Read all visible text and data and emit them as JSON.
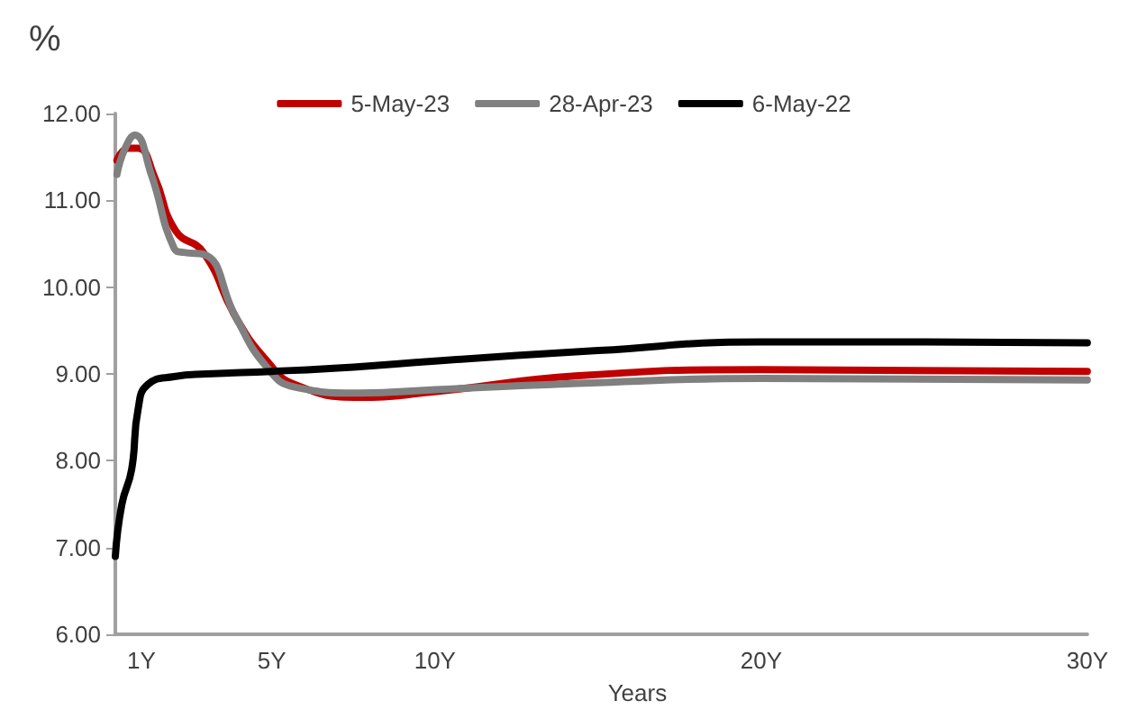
{
  "chart_data": {
    "type": "line",
    "ylabel": "%",
    "xlabel": "Years",
    "legend": "top",
    "grid": false,
    "marker": "none",
    "line_style": "solid",
    "xlim": [
      0.2,
      30
    ],
    "xticks": [
      {
        "value": 1,
        "label": "1Y"
      },
      {
        "value": 5,
        "label": "5Y"
      },
      {
        "value": 10,
        "label": "10Y"
      },
      {
        "value": 20,
        "label": "20Y"
      },
      {
        "value": 30,
        "label": "30Y"
      }
    ],
    "ylim": [
      6,
      12
    ],
    "yticks": [
      {
        "value": 6,
        "label": "6.00"
      },
      {
        "value": 7,
        "label": "7.00"
      },
      {
        "value": 8,
        "label": "8.00"
      },
      {
        "value": 9,
        "label": "9.00"
      },
      {
        "value": 10,
        "label": "10.00"
      },
      {
        "value": 11,
        "label": "11.00"
      },
      {
        "value": 12,
        "label": "12.00"
      }
    ],
    "series": [
      {
        "name": "5-May-23",
        "color": "#c00000",
        "x": [
          0.25,
          0.6,
          0.9,
          1.4,
          2.05,
          2.9,
          3.9,
          4.85,
          5.7,
          7.7,
          9.85,
          14.4,
          20,
          30
        ],
        "values": [
          11.46,
          11.6,
          11.6,
          11.27,
          10.65,
          10.4,
          9.65,
          9.15,
          8.88,
          8.73,
          8.79,
          8.98,
          9.05,
          9.03
        ]
      },
      {
        "name": "28-Apr-23",
        "color": "#808080",
        "x": [
          0.25,
          0.5,
          0.8,
          1.3,
          2.0,
          2.3,
          2.9,
          3.9,
          4.8,
          5.7,
          7.7,
          10,
          15,
          20,
          30
        ],
        "values": [
          11.3,
          11.6,
          11.75,
          11.3,
          10.45,
          10.4,
          10.38,
          9.65,
          9.1,
          8.85,
          8.78,
          8.82,
          8.9,
          8.95,
          8.93
        ]
      },
      {
        "name": "6-May-22",
        "color": "#000000",
        "x": [
          0.2,
          0.4,
          0.7,
          0.9,
          1.2,
          2.0,
          3,
          5,
          7.5,
          10,
          15,
          20,
          25,
          30
        ],
        "values": [
          6.9,
          7.5,
          7.9,
          8.6,
          8.88,
          8.97,
          9.0,
          9.03,
          9.08,
          9.15,
          9.27,
          9.37,
          9.37,
          9.36
        ]
      }
    ]
  }
}
